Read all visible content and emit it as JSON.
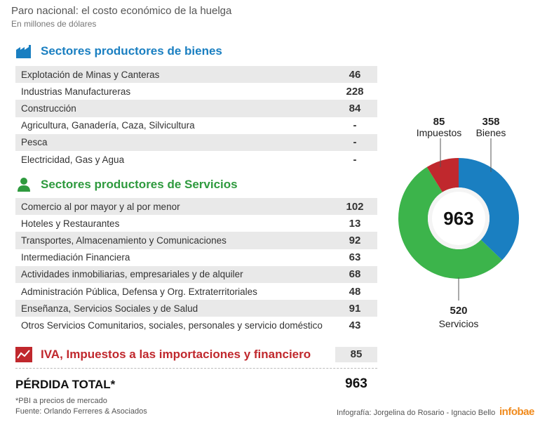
{
  "title": "Paro nacional: el costo económico de la huelga",
  "subtitle": "En millones de dólares",
  "sections": {
    "bienes": {
      "label": "Sectores productores de bienes",
      "rows": [
        {
          "name": "Explotación de Minas y Canteras",
          "value": "46"
        },
        {
          "name": "Industrias Manufactureras",
          "value": "228"
        },
        {
          "name": "Construcción",
          "value": "84"
        },
        {
          "name": "Agricultura, Ganadería, Caza, Silvicultura",
          "value": "-"
        },
        {
          "name": "Pesca",
          "value": "-"
        },
        {
          "name": "Electricidad, Gas y Agua",
          "value": "-"
        }
      ]
    },
    "servicios": {
      "label": "Sectores productores de Servicios",
      "rows": [
        {
          "name": "Comercio al por mayor y al por menor",
          "value": "102"
        },
        {
          "name": "Hoteles y Restaurantes",
          "value": "13"
        },
        {
          "name": "Transportes, Almacenamiento y Comunicaciones",
          "value": "92"
        },
        {
          "name": "Intermediación Financiera",
          "value": "63"
        },
        {
          "name": "Actividades inmobiliarias, empresariales y de alquiler",
          "value": "68"
        },
        {
          "name": "Administración Pública, Defensa y Org. Extraterritoriales",
          "value": "48"
        },
        {
          "name": "Enseñanza, Servicios Sociales y de Salud",
          "value": "91"
        },
        {
          "name": "Otros Servicios Comunitarios, sociales, personales y servicio doméstico",
          "value": "43"
        }
      ]
    },
    "iva": {
      "label": "IVA, Impuestos a las importaciones y financiero",
      "value": "85"
    }
  },
  "total": {
    "label": "PÉRDIDA TOTAL*",
    "value": "963"
  },
  "footnote": "*PBI a precios de mercado",
  "source": "Fuente: Orlando Ferreres & Asociados",
  "credit": "Infografía: Jorgelina do Rosario - Ignacio Bello",
  "brand": "infobae",
  "icons": {
    "bienes": "factory-icon",
    "servicios": "person-icon",
    "iva": "chart-icon"
  },
  "colors": {
    "bienes": "#1a7fc1",
    "servicios": "#2e9a3e",
    "impuestos": "#c0282d",
    "brand": "#f08a1c"
  },
  "chart_data": {
    "type": "pie",
    "variant": "donut",
    "title": "",
    "total_label": "963",
    "slices": [
      {
        "name": "Bienes",
        "value": 358,
        "color": "#1a7fc1"
      },
      {
        "name": "Servicios",
        "value": 520,
        "color": "#3cb44b"
      },
      {
        "name": "Impuestos",
        "value": 85,
        "color": "#c0282d"
      }
    ]
  }
}
